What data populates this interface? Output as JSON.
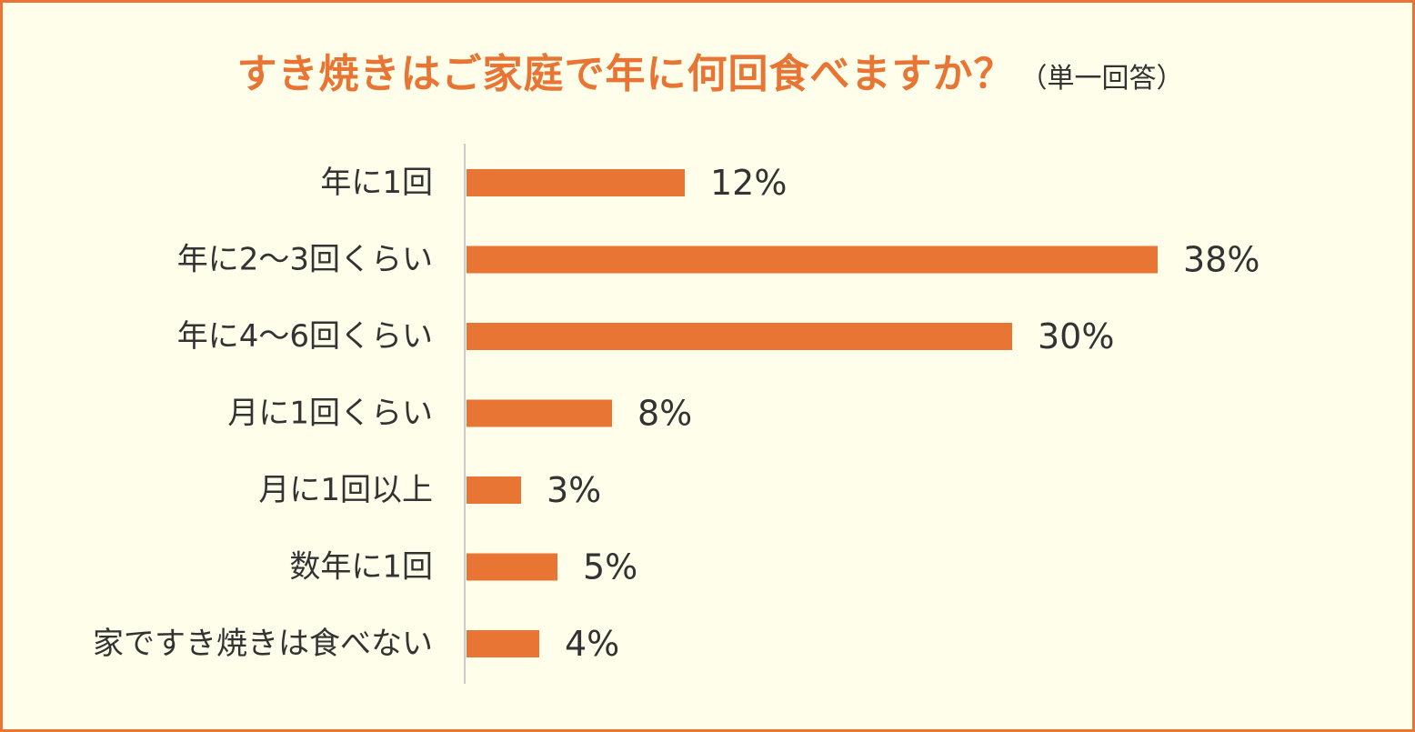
{
  "title": {
    "main": "すき焼きはご家庭で年に何回食べますか？",
    "note": "（単一回答）"
  },
  "colors": {
    "accent": "#e87533",
    "background": "#fffeea",
    "text": "#333333",
    "axis": "#cccccc"
  },
  "chart_data": {
    "type": "bar",
    "orientation": "horizontal",
    "title": "すき焼きはご家庭で年に何回食べますか？（単一回答）",
    "categories": [
      "年に1回",
      "年に2〜3回くらい",
      "年に4〜6回くらい",
      "月に1回くらい",
      "月に1回以上",
      "数年に1回",
      "家ですき焼きは食べない"
    ],
    "values": [
      12,
      38,
      30,
      8,
      3,
      5,
      4
    ],
    "data_labels": [
      "12%",
      "38%",
      "30%",
      "8%",
      "3%",
      "5%",
      "4%"
    ],
    "unit": "%",
    "grid": false,
    "legend": "none"
  }
}
